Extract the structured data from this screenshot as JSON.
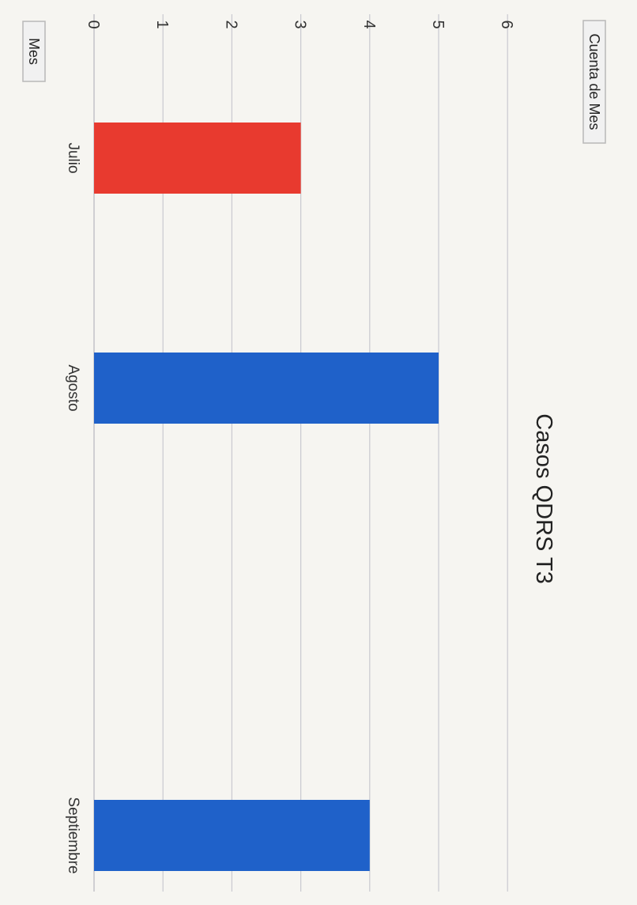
{
  "chart_data": {
    "type": "bar",
    "title": "Casos QDRS T3",
    "categories": [
      "Julio",
      "Agosto",
      "Septiembre"
    ],
    "series": [
      {
        "values": [
          3,
          5,
          4
        ],
        "colors": [
          "#e83a2f",
          "#1f61c9",
          "#1f61c9"
        ]
      }
    ],
    "ylim": [
      0,
      6
    ],
    "yticks": [
      "0",
      "1",
      "2",
      "3",
      "4",
      "5",
      "6"
    ],
    "grid": true
  },
  "controls": {
    "value_field_button": "Cuenta de Mes",
    "axis_field_button": "Mes"
  }
}
